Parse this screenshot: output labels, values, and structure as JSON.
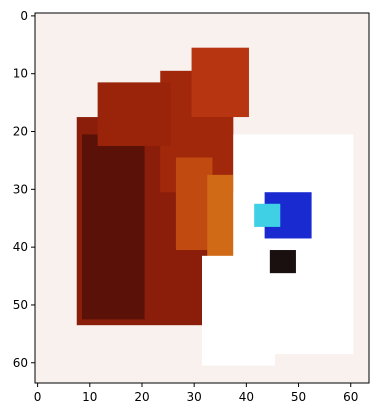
{
  "chart_data": {
    "type": "heatmap",
    "title": "",
    "xlabel": "",
    "ylabel": "",
    "xlim": [
      -0.5,
      63.5
    ],
    "ylim": [
      63.5,
      -0.5
    ],
    "image_size": [
      64,
      64
    ],
    "grid": false,
    "x_ticks": [
      {
        "value": 0,
        "label": "0"
      },
      {
        "value": 10,
        "label": "10"
      },
      {
        "value": 20,
        "label": "20"
      },
      {
        "value": 30,
        "label": "30"
      },
      {
        "value": 40,
        "label": "40"
      },
      {
        "value": 50,
        "label": "50"
      },
      {
        "value": 60,
        "label": "60"
      }
    ],
    "y_ticks": [
      {
        "value": 0,
        "label": "0"
      },
      {
        "value": 10,
        "label": "10"
      },
      {
        "value": 20,
        "label": "20"
      },
      {
        "value": 30,
        "label": "30"
      },
      {
        "value": 40,
        "label": "40"
      },
      {
        "value": 50,
        "label": "50"
      },
      {
        "value": 60,
        "label": "60"
      }
    ],
    "regions": [
      {
        "name": "background",
        "x": [
          0,
          63
        ],
        "y": [
          0,
          63
        ],
        "color": "#f8f1ee"
      },
      {
        "name": "subject-torso",
        "x": [
          8,
          36
        ],
        "y": [
          18,
          53
        ],
        "color": "#8b1e0a"
      },
      {
        "name": "subject-left-dark",
        "x": [
          9,
          20
        ],
        "y": [
          21,
          52
        ],
        "color": "#5a1108"
      },
      {
        "name": "subject-upper",
        "x": [
          24,
          37
        ],
        "y": [
          10,
          30
        ],
        "color": "#a2280b"
      },
      {
        "name": "subject-top",
        "x": [
          30,
          40
        ],
        "y": [
          6,
          17
        ],
        "color": "#b83512"
      },
      {
        "name": "subject-shoulder",
        "x": [
          12,
          25
        ],
        "y": [
          12,
          22
        ],
        "color": "#9a2409"
      },
      {
        "name": "subject-bright-streak",
        "x": [
          27,
          33
        ],
        "y": [
          25,
          40
        ],
        "color": "#c04a0f"
      },
      {
        "name": "subject-right-edge",
        "x": [
          33,
          37
        ],
        "y": [
          28,
          45
        ],
        "color": "#d06a16"
      },
      {
        "name": "white-patch",
        "x": [
          38,
          60
        ],
        "y": [
          21,
          58
        ],
        "color": "#ffffff"
      },
      {
        "name": "white-lower",
        "x": [
          32,
          45
        ],
        "y": [
          42,
          60
        ],
        "color": "#ffffff"
      },
      {
        "name": "blue-marks",
        "x": [
          44,
          52
        ],
        "y": [
          31,
          38
        ],
        "color": "#1a2ad1"
      },
      {
        "name": "dark-mark",
        "x": [
          45,
          49
        ],
        "y": [
          41,
          44
        ],
        "color": "#1a1010"
      },
      {
        "name": "cyan-mark",
        "x": [
          42,
          46
        ],
        "y": [
          33,
          36
        ],
        "color": "#3fd0e6"
      }
    ]
  }
}
